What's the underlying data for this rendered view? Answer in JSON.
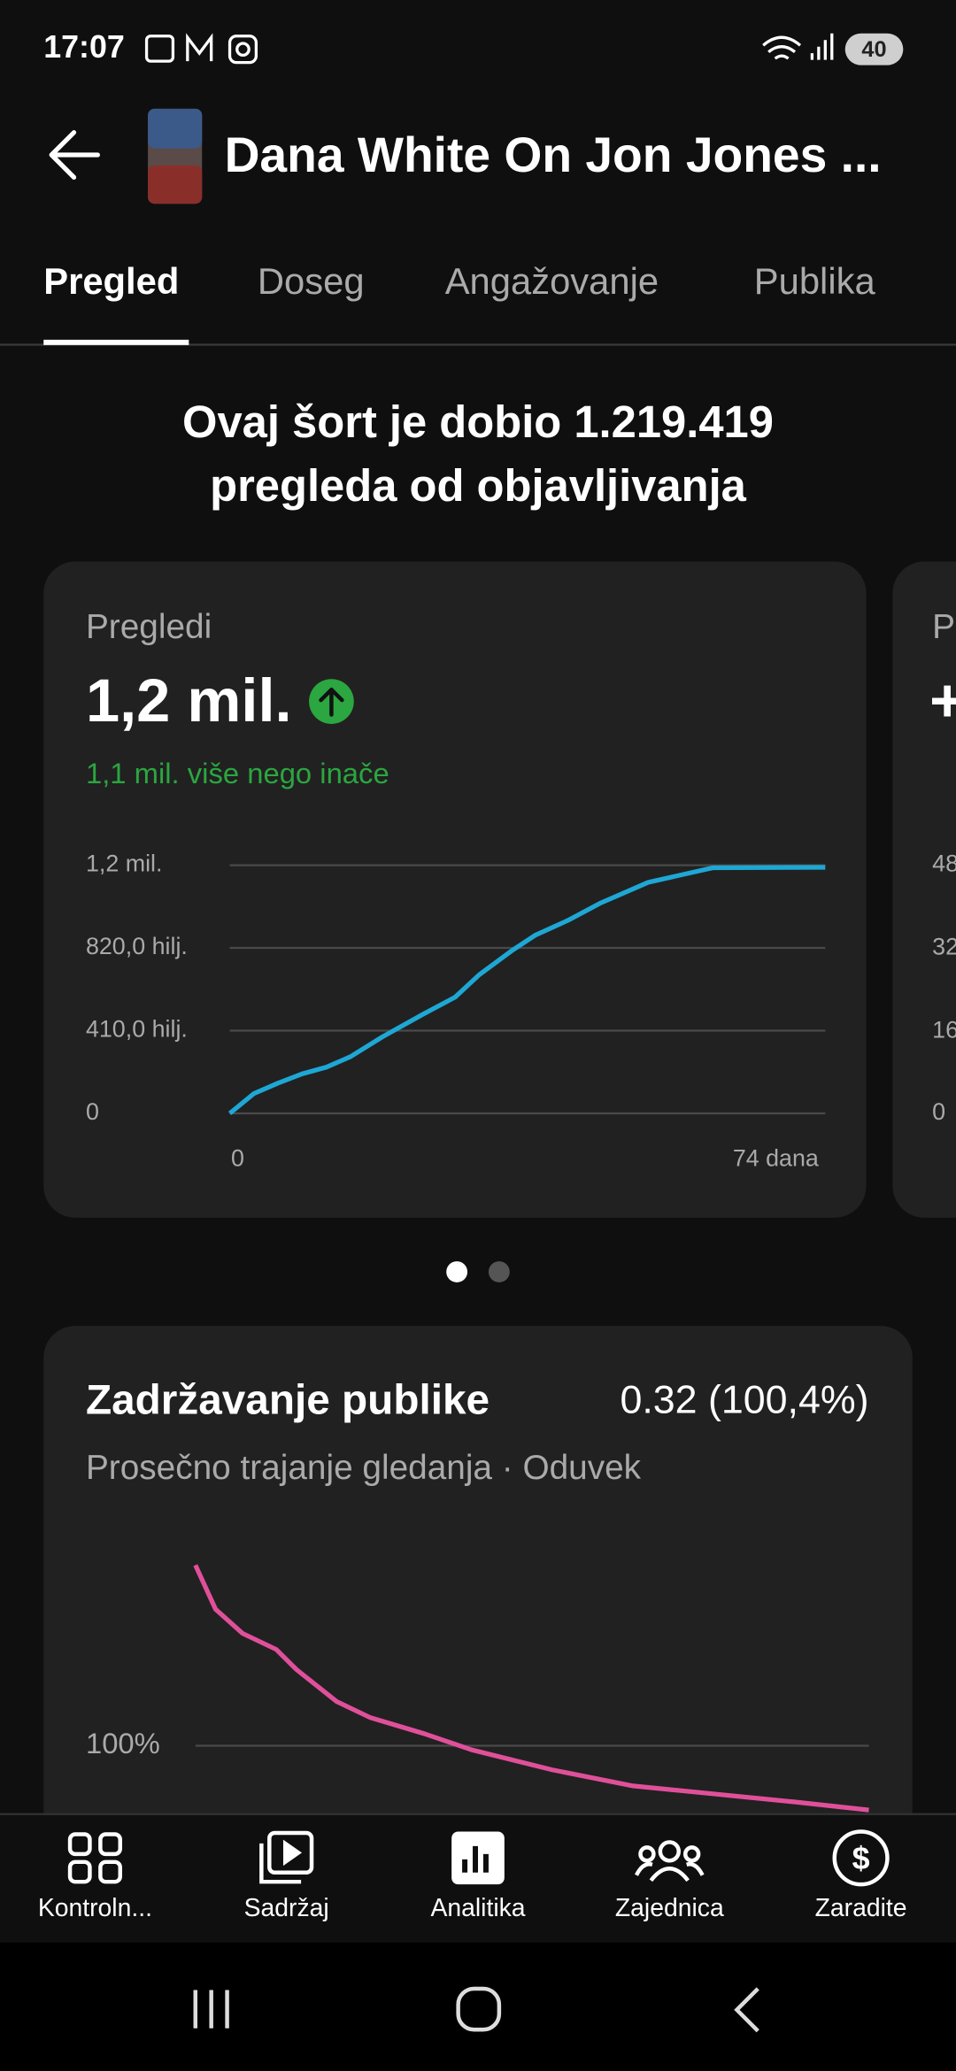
{
  "status_bar": {
    "time": "17:07",
    "battery": "40"
  },
  "header": {
    "title": "Dana White On Jon Jones ..."
  },
  "tabs": [
    "Pregled",
    "Doseg",
    "Angažovanje",
    "Publika"
  ],
  "headline": [
    "Ovaj šort je dobio 1.219.419",
    "pregleda od objavljivanja"
  ],
  "views_card": {
    "label": "Pregledi",
    "value": "1,2 mil.",
    "comparison": "1,1 mil. više nego inače",
    "chart": {
      "type": "line",
      "color": "#1ea7d4",
      "xlim": [
        0,
        74
      ],
      "xticks": [
        {
          "value": 0,
          "label": "0"
        },
        {
          "value": 74,
          "label": "74 dana"
        }
      ],
      "ylim": [
        0,
        1230000
      ],
      "yticks": [
        {
          "value": 0,
          "label": "0"
        },
        {
          "value": 410000,
          "label": "410,0 hilj."
        },
        {
          "value": 820000,
          "label": "820,0 hilj."
        },
        {
          "value": 1230000,
          "label": "1,2 mil."
        }
      ],
      "x": [
        0,
        3,
        6,
        9,
        12,
        15,
        19,
        24,
        28,
        31,
        35,
        38,
        42,
        46,
        52,
        60,
        74
      ],
      "values": [
        0,
        98000,
        150000,
        196000,
        229000,
        281000,
        380000,
        491000,
        576000,
        687000,
        805000,
        884000,
        956000,
        1041000,
        1145000,
        1217000,
        1219419
      ]
    }
  },
  "next_card": {
    "label": "P",
    "value": "+",
    "yticks": [
      "48",
      "32",
      "16",
      "0"
    ]
  },
  "retention_card": {
    "title": "Zadržavanje publike",
    "value": "0.32 (100,4%)",
    "subtitle": "Prosečno trajanje gledanja · Oduvek",
    "chart": {
      "type": "line",
      "color": "#e0509a",
      "xlim": [
        0,
        100
      ],
      "ylim": [
        0,
        150
      ],
      "yticks": [
        {
          "value": 100,
          "label": "100%"
        }
      ],
      "x": [
        0,
        3,
        7,
        12,
        15,
        21,
        26,
        34,
        41,
        53,
        65,
        77,
        89,
        100
      ],
      "values": [
        145,
        134,
        128,
        124,
        119,
        111,
        107,
        103,
        99,
        94,
        90,
        88,
        86,
        84
      ]
    }
  },
  "bottom_nav": [
    "Kontroln...",
    "Sadržaj",
    "Analitika",
    "Zajednica",
    "Zaradite"
  ]
}
